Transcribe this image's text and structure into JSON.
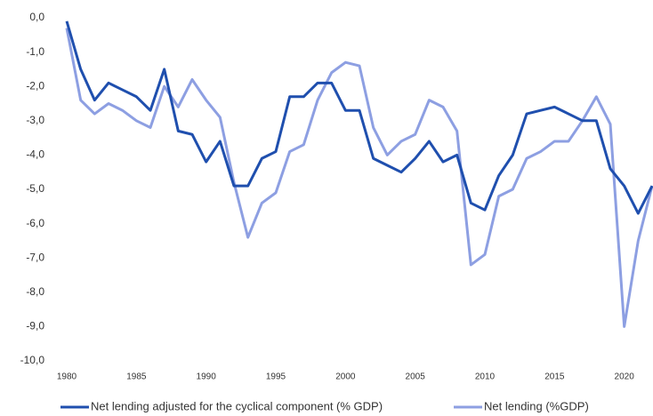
{
  "chart_data": {
    "type": "line",
    "x": [
      1980,
      1981,
      1982,
      1983,
      1984,
      1985,
      1986,
      1987,
      1988,
      1989,
      1990,
      1991,
      1992,
      1993,
      1994,
      1995,
      1996,
      1997,
      1998,
      1999,
      2000,
      2001,
      2002,
      2003,
      2004,
      2005,
      2006,
      2007,
      2008,
      2009,
      2010,
      2011,
      2012,
      2013,
      2014,
      2015,
      2016,
      2017,
      2018,
      2019,
      2020,
      2021,
      2022
    ],
    "series": [
      {
        "name": "Net lending adjusted for the cyclical component (% GDP)",
        "color": "#1f4fae",
        "values": [
          -0.1,
          -1.5,
          -2.4,
          -1.9,
          -2.1,
          -2.3,
          -2.7,
          -1.5,
          -3.3,
          -3.4,
          -4.2,
          -3.6,
          -4.9,
          -4.9,
          -4.1,
          -3.9,
          -2.3,
          -2.3,
          -1.9,
          -1.9,
          -2.7,
          -2.7,
          -4.1,
          -4.3,
          -4.5,
          -4.1,
          -3.6,
          -4.2,
          -4.0,
          -5.4,
          -5.6,
          -4.6,
          -4.0,
          -2.8,
          -2.7,
          -2.6,
          -2.8,
          -3.0,
          -3.0,
          -4.4,
          -4.9,
          -5.7,
          -4.9
        ]
      },
      {
        "name": "Net lending (%GDP)",
        "color": "#8d9fe2",
        "values": [
          -0.3,
          -2.4,
          -2.8,
          -2.5,
          -2.7,
          -3.0,
          -3.2,
          -2.0,
          -2.6,
          -1.8,
          -2.4,
          -2.9,
          -4.8,
          -6.4,
          -5.4,
          -5.1,
          -3.9,
          -3.7,
          -2.4,
          -1.6,
          -1.3,
          -1.4,
          -3.2,
          -4.0,
          -3.6,
          -3.4,
          -2.4,
          -2.6,
          -3.3,
          -7.2,
          -6.9,
          -5.2,
          -5.0,
          -4.1,
          -3.9,
          -3.6,
          -3.6,
          -3.0,
          -2.3,
          -3.1,
          -9.0,
          -6.5,
          -4.9
        ]
      }
    ],
    "xlim": [
      1980,
      2022
    ],
    "xticks": [
      1980,
      1985,
      1990,
      1995,
      2000,
      2005,
      2010,
      2015,
      2020
    ],
    "ylim": [
      -10,
      0
    ],
    "yticks": [
      {
        "value": 0,
        "label": "0,0"
      },
      {
        "value": -1,
        "label": "-1,0"
      },
      {
        "value": -2,
        "label": "-2,0"
      },
      {
        "value": -3,
        "label": "-3,0"
      },
      {
        "value": -4,
        "label": "-4,0"
      },
      {
        "value": -5,
        "label": "-5,0"
      },
      {
        "value": -6,
        "label": "-6,0"
      },
      {
        "value": -7,
        "label": "-7,0"
      },
      {
        "value": -8,
        "label": "-8,0"
      },
      {
        "value": -9,
        "label": "-9,0"
      },
      {
        "value": -10,
        "label": "-10,0"
      }
    ],
    "grid": false,
    "legend": "bottom"
  }
}
